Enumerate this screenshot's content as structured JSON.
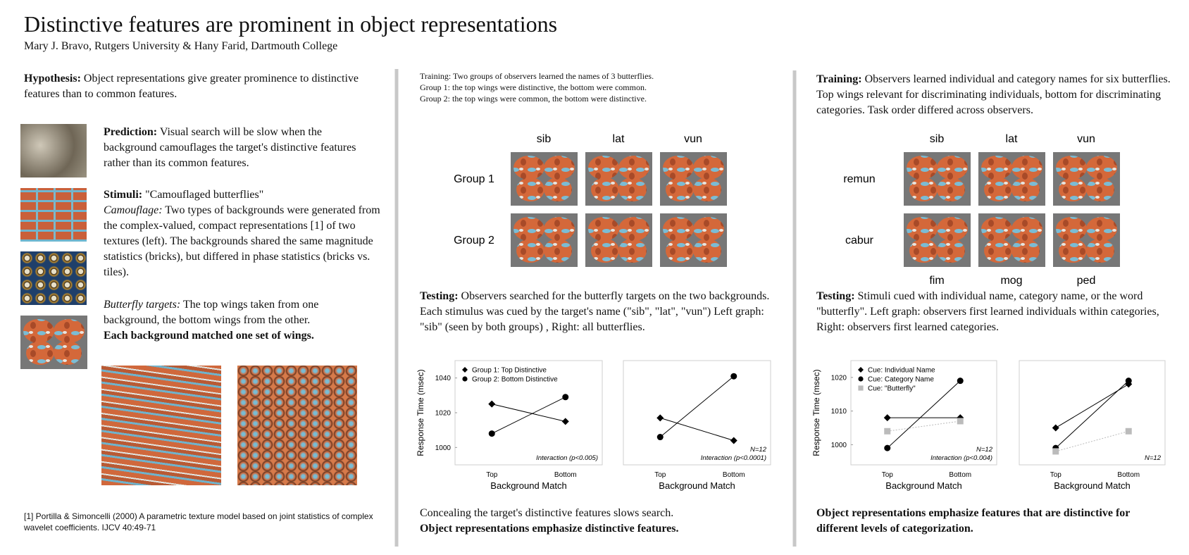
{
  "header": {
    "title": "Distinctive features are prominent in object representations",
    "authors": "Mary J. Bravo, Rutgers University & Hany Farid, Dartmouth College"
  },
  "left": {
    "hypothesis": {
      "label": "Hypothesis:",
      "text": "Object representations give greater prominence to distinctive features than to common features."
    },
    "prediction": {
      "label": "Prediction:",
      "text": "Visual search will be slow when the background camouflages the target's distinctive features rather than its common features."
    },
    "stimuli": {
      "label": "Stimuli:",
      "text": "\"Camouflaged butterflies\"",
      "camouflage_label": "Camouflage:",
      "camouflage_text": "Two types of backgrounds were generated from the complex-valued, compact representations [1] of two textures (left).  The backgrounds shared the same magnitude statistics (bricks),  but differed in phase statistics  (bricks vs. tiles).",
      "targets_label": "Butterfly targets:",
      "targets_text": "The top wings taken from one background, the bottom wings from the other.",
      "targets_bold": "Each background matched one set of wings."
    },
    "footnote": "[1] Portilla & Simoncelli (2000) A parametric texture model based on joint statistics of complex wavelet coefficients. IJCV 40:49-71"
  },
  "middle": {
    "training": [
      "Training: Two groups of observers learned the names of 3 butterflies.",
      "Group 1: the top wings were distinctive, the bottom were common.",
      "Group 2: the top wings were common, the bottom were distinctive."
    ],
    "columns": [
      "sib",
      "lat",
      "vun"
    ],
    "rows": [
      "Group 1",
      "Group 2"
    ],
    "testing": {
      "label": "Testing:",
      "text": "Observers searched for the butterfly targets on the two backgrounds. Each stimulus was cued by the target's name (\"sib\", \"lat\", \"vun\")  Left graph: \"sib\" (seen by both groups) , Right: all butterflies."
    },
    "conclusion": {
      "text": "Concealing the target's distinctive features slows search.",
      "bold": "Object representations emphasize distinctive features."
    }
  },
  "right": {
    "training": {
      "label": "Training:",
      "text": "Observers learned individual and category names for six butterflies. Top wings relevant for discriminating individuals, bottom for discriminating categories. Task order differed across observers."
    },
    "columns": [
      "sib",
      "lat",
      "vun"
    ],
    "rows": [
      "remun",
      "cabur"
    ],
    "bottom_labels": [
      "fim",
      "mog",
      "ped"
    ],
    "testing": {
      "label": "Testing:",
      "text": "Stimuli cued with individual name, category name, or the word \"butterfly\".  Left graph: observers first learned individuals within categories, Right: observers first learned categories."
    },
    "conclusion": "Object representations emphasize features that are distinctive for different levels of categorization."
  },
  "chart_data": [
    {
      "type": "line",
      "ylabel": "Response Time (msec)",
      "xlabel": "Background Match",
      "categories": [
        "Top",
        "Bottom"
      ],
      "ylim": [
        990,
        1050
      ],
      "yticks": [
        1000,
        1020,
        1040
      ],
      "legend": "top-left",
      "series": [
        {
          "name": "Group 1: Top Distinctive",
          "marker": "diamond",
          "color": "#000000",
          "values": [
            1025,
            1015
          ]
        },
        {
          "name": "Group 2: Bottom Distinctive",
          "marker": "circle",
          "color": "#000000",
          "values": [
            1008,
            1029
          ]
        }
      ],
      "annotations": [
        "Interaction (p<0.005)"
      ]
    },
    {
      "type": "line",
      "xlabel": "Background Match",
      "categories": [
        "Top",
        "Bottom"
      ],
      "ylim": [
        990,
        1050
      ],
      "series": [
        {
          "marker": "diamond",
          "color": "#000000",
          "values": [
            1017,
            1004
          ]
        },
        {
          "marker": "circle",
          "color": "#000000",
          "values": [
            1006,
            1041
          ]
        }
      ],
      "annotations": [
        "N=12",
        "Interaction (p<0.0001)"
      ]
    },
    {
      "type": "line",
      "ylabel": "Response Time (msec)",
      "xlabel": "Background Match",
      "categories": [
        "Top",
        "Bottom"
      ],
      "ylim": [
        994,
        1025
      ],
      "yticks": [
        1000,
        1010,
        1020
      ],
      "legend": "top-left",
      "series": [
        {
          "name": "Cue: Individual Name",
          "marker": "diamond",
          "color": "#000000",
          "values": [
            1008,
            1008
          ]
        },
        {
          "name": "Cue: Category Name",
          "marker": "circle",
          "color": "#000000",
          "values": [
            999,
            1019
          ]
        },
        {
          "name": "Cue: \"Butterfly\"",
          "marker": "square",
          "color": "#bbbbbb",
          "line_style": "dotted",
          "values": [
            1004,
            1007
          ]
        }
      ],
      "annotations": [
        "N=12",
        "Interaction (p<0.004)"
      ]
    },
    {
      "type": "line",
      "xlabel": "Background Match",
      "categories": [
        "Top",
        "Bottom"
      ],
      "ylim": [
        994,
        1025
      ],
      "series": [
        {
          "marker": "diamond",
          "color": "#000000",
          "values": [
            1005,
            1018
          ]
        },
        {
          "marker": "circle",
          "color": "#000000",
          "values": [
            999,
            1019
          ]
        },
        {
          "marker": "square",
          "color": "#bbbbbb",
          "line_style": "dotted",
          "values": [
            998,
            1004
          ]
        }
      ],
      "annotations": [
        "N=12"
      ]
    }
  ]
}
